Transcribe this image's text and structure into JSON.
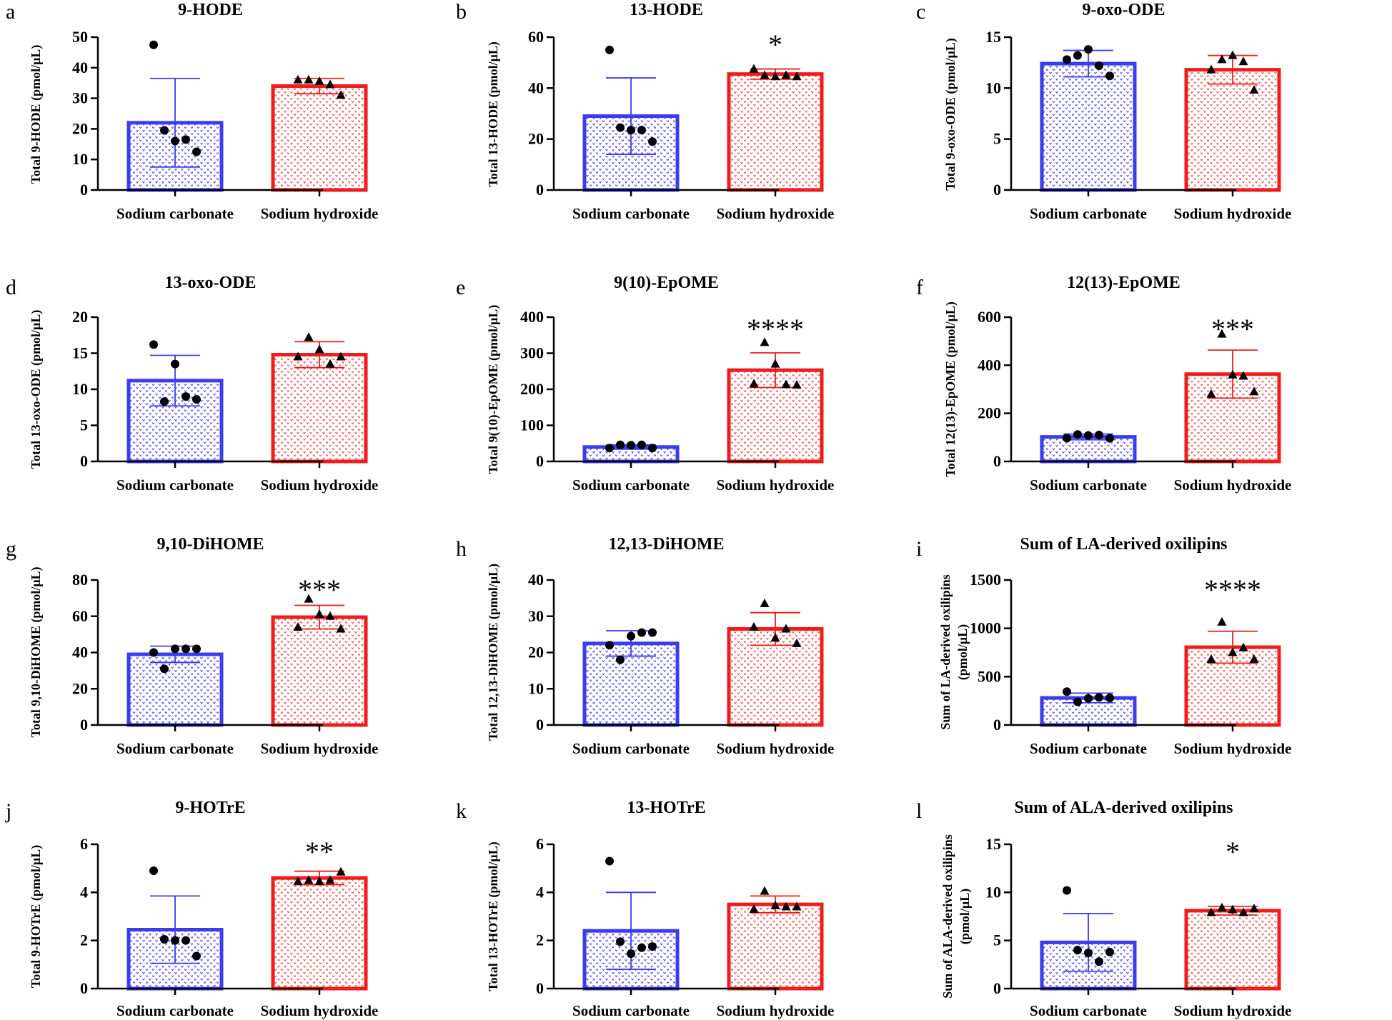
{
  "colors": {
    "carbonate": "#3b3bf0",
    "hydroxide": "#f01c1c",
    "axis": "#000000"
  },
  "chart_data": [
    {
      "panel": "a",
      "title": "9-HODE",
      "type": "bar",
      "ylabel": "Total 9-HODE (pmol/μL)",
      "ylabel_lines": [
        "Total 9-HODE (pmol/μL)"
      ],
      "categories": [
        "Sodium carbonate",
        "Sodium hydroxide"
      ],
      "ylim": [
        0,
        50
      ],
      "yticks": [
        "0",
        "10",
        "20",
        "30",
        "40",
        "50"
      ],
      "values": [
        22,
        34
      ],
      "errors": [
        14.5,
        2.5
      ],
      "points": [
        [
          47.5,
          19.5,
          16,
          16.5,
          12.5
        ],
        [
          36,
          36,
          35.5,
          34.5,
          31
        ]
      ],
      "significance": ""
    },
    {
      "panel": "b",
      "title": "13-HODE",
      "type": "bar",
      "ylabel": "Total 13-HODE (pmol/μL)",
      "ylabel_lines": [
        "Total 13-HODE (pmol/μL)"
      ],
      "categories": [
        "Sodium carbonate",
        "Sodium hydroxide"
      ],
      "ylim": [
        0,
        60
      ],
      "yticks": [
        "0",
        "20",
        "40",
        "60"
      ],
      "values": [
        29,
        45.5
      ],
      "errors": [
        15,
        2
      ],
      "points": [
        [
          55,
          24.5,
          23.5,
          23.5,
          19
        ],
        [
          47.5,
          45,
          44.5,
          45,
          44.5
        ]
      ],
      "significance": "*"
    },
    {
      "panel": "c",
      "title": "9-oxo-ODE",
      "type": "bar",
      "ylabel": "Total 9-oxo-ODE (pmol/μL)",
      "ylabel_lines": [
        "Total 9-oxo-ODE (pmol/μL)"
      ],
      "categories": [
        "Sodium carbonate",
        "Sodium hydroxide"
      ],
      "ylim": [
        0,
        15
      ],
      "yticks": [
        "0",
        "5",
        "10",
        "15"
      ],
      "values": [
        12.4,
        11.8
      ],
      "errors": [
        1.3,
        1.4
      ],
      "points": [
        [
          12.8,
          13.2,
          13.8,
          12.2,
          11.2
        ],
        [
          11.8,
          12.8,
          13.2,
          12.6,
          9.8
        ]
      ],
      "significance": ""
    },
    {
      "panel": "d",
      "title": "13-oxo-ODE",
      "type": "bar",
      "ylabel": "Total 13-oxo-ODE (pmol/μL)",
      "ylabel_lines": [
        "Total 13-oxo-ODE (pmol/μL)"
      ],
      "categories": [
        "Sodium carbonate",
        "Sodium hydroxide"
      ],
      "ylim": [
        0,
        20
      ],
      "yticks": [
        "0",
        "5",
        "10",
        "15",
        "20"
      ],
      "values": [
        11.2,
        14.8
      ],
      "errors": [
        3.5,
        1.8
      ],
      "points": [
        [
          16.2,
          8.3,
          13.5,
          9,
          8.6
        ],
        [
          14.5,
          17.2,
          15.5,
          13.5,
          14.5
        ]
      ],
      "significance": ""
    },
    {
      "panel": "e",
      "title": "9(10)-EpOME",
      "type": "bar",
      "ylabel": "Total 9(10)-EpOME (pmol/μL)",
      "ylabel_lines": [
        "Total 9(10)-EpOME (pmol/μL)"
      ],
      "categories": [
        "Sodium carbonate",
        "Sodium hydroxide"
      ],
      "ylim": [
        0,
        400
      ],
      "yticks": [
        "0",
        "100",
        "200",
        "300",
        "400"
      ],
      "values": [
        40,
        253
      ],
      "errors": [
        6,
        48
      ],
      "points": [
        [
          37,
          46,
          45,
          46,
          37
        ],
        [
          215,
          330,
          270,
          213,
          212
        ]
      ],
      "significance": "****"
    },
    {
      "panel": "f",
      "title": "12(13)-EpOME",
      "type": "bar",
      "ylabel": "Total 12(13)-EpOME (pmol/μL)",
      "ylabel_lines": [
        "Total 12(13)-EpOME (pmol/μL)"
      ],
      "categories": [
        "Sodium carbonate",
        "Sodium hydroxide"
      ],
      "ylim": [
        0,
        600
      ],
      "yticks": [
        "0",
        "200",
        "400",
        "600"
      ],
      "values": [
        102,
        363
      ],
      "errors": [
        12,
        100
      ],
      "points": [
        [
          97,
          112,
          108,
          110,
          96
        ],
        [
          280,
          530,
          360,
          355,
          290
        ]
      ],
      "significance": "***"
    },
    {
      "panel": "g",
      "title": "9,10-DiHOME",
      "type": "bar",
      "ylabel": "Total 9,10-DiHOME (pmol/μL)",
      "ylabel_lines": [
        "Total 9,10-DiHOME (pmol/μL)"
      ],
      "categories": [
        "Sodium carbonate",
        "Sodium hydroxide"
      ],
      "ylim": [
        0,
        80
      ],
      "yticks": [
        "0",
        "20",
        "40",
        "60",
        "80"
      ],
      "values": [
        39,
        59.5
      ],
      "errors": [
        4.5,
        6.5
      ],
      "points": [
        [
          40,
          31,
          42,
          42,
          42
        ],
        [
          54,
          69.5,
          61,
          60,
          53
        ]
      ],
      "significance": "***"
    },
    {
      "panel": "h",
      "title": "12,13-DiHOME",
      "type": "bar",
      "ylabel": "Total 12,13-DiHOME (pmol/μL)",
      "ylabel_lines": [
        "Total 12,13-DiHOME (pmol/μL)"
      ],
      "categories": [
        "Sodium carbonate",
        "Sodium hydroxide"
      ],
      "ylim": [
        0,
        40
      ],
      "yticks": [
        "0",
        "10",
        "20",
        "30",
        "40"
      ],
      "values": [
        22.5,
        26.5
      ],
      "errors": [
        3.5,
        4.5
      ],
      "points": [
        [
          22,
          18,
          24.5,
          25.5,
          25.5
        ],
        [
          27,
          33.5,
          24,
          26.5,
          22.5
        ]
      ],
      "significance": ""
    },
    {
      "panel": "i",
      "title": "Sum of LA-derived oxilipins",
      "type": "bar",
      "ylabel": "Sum of LA-derived oxilipins (pmol/μL)",
      "ylabel_lines": [
        "Sum of LA-derived oxilipins",
        "(pmol/μL)"
      ],
      "categories": [
        "Sodium carbonate",
        "Sodium hydroxide"
      ],
      "ylim": [
        0,
        1500
      ],
      "yticks": [
        "0",
        "500",
        "1000",
        "1500"
      ],
      "values": [
        280,
        805
      ],
      "errors": [
        50,
        165
      ],
      "points": [
        [
          345,
          240,
          275,
          285,
          280
        ],
        [
          680,
          1065,
          750,
          800,
          680
        ]
      ],
      "significance": "****"
    },
    {
      "panel": "j",
      "title": "9-HOTrE",
      "type": "bar",
      "ylabel": "Total 9-HOTrE (pmol/μL)",
      "ylabel_lines": [
        "Total 9-HOTrE (pmol/μL)"
      ],
      "categories": [
        "Sodium carbonate",
        "Sodium hydroxide"
      ],
      "ylim": [
        0,
        6
      ],
      "yticks": [
        "0",
        "2",
        "4",
        "6"
      ],
      "values": [
        2.45,
        4.6
      ],
      "errors": [
        1.4,
        0.28
      ],
      "points": [
        [
          4.9,
          2.05,
          2.0,
          2.0,
          1.35
        ],
        [
          4.45,
          4.5,
          4.45,
          4.5,
          4.85
        ]
      ],
      "significance": "**"
    },
    {
      "panel": "k",
      "title": "13-HOTrE",
      "type": "bar",
      "ylabel": "Total 13-HOTrE (pmol/μL)",
      "ylabel_lines": [
        "Total 13-HOTrE (pmol/μL)"
      ],
      "categories": [
        "Sodium carbonate",
        "Sodium hydroxide"
      ],
      "ylim": [
        0,
        6
      ],
      "yticks": [
        "0",
        "2",
        "4",
        "6"
      ],
      "values": [
        2.4,
        3.5
      ],
      "errors": [
        1.6,
        0.35
      ],
      "points": [
        [
          5.3,
          1.95,
          1.45,
          1.7,
          1.75
        ],
        [
          3.3,
          4.05,
          3.45,
          3.4,
          3.4
        ]
      ],
      "significance": ""
    },
    {
      "panel": "l",
      "title": "Sum of ALA-derived oxilipins",
      "type": "bar",
      "ylabel": "Sum of ALA-derived oxilipins (pmol/μL)",
      "ylabel_lines": [
        "Sum of ALA-derived oxilipins",
        "(pmol/μL)"
      ],
      "categories": [
        "Sodium carbonate",
        "Sodium hydroxide"
      ],
      "ylim": [
        0,
        15
      ],
      "yticks": [
        "0",
        "5",
        "10",
        "15"
      ],
      "values": [
        4.8,
        8.1
      ],
      "errors": [
        3.0,
        0.45
      ],
      "points": [
        [
          10.2,
          4.0,
          3.7,
          2.8,
          3.8
        ],
        [
          7.9,
          8.4,
          8.2,
          7.9,
          8.3
        ]
      ],
      "significance": "*"
    }
  ]
}
